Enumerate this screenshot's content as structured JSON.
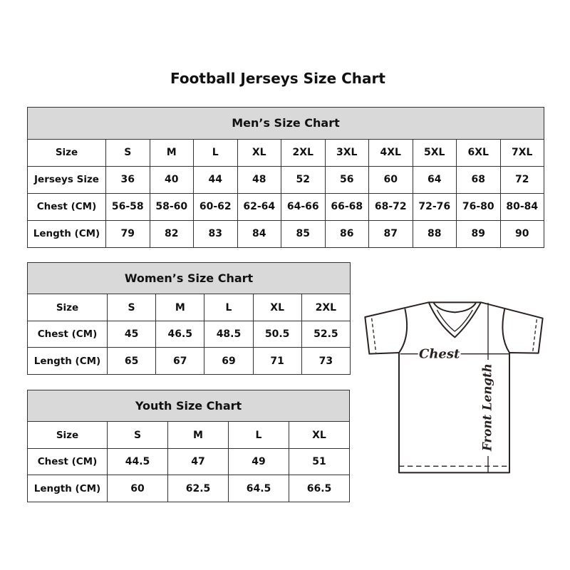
{
  "title": "Football Jerseys Size Chart",
  "men": {
    "heading": "Men’s Size Chart",
    "rows": [
      [
        "Size",
        "S",
        "M",
        "L",
        "XL",
        "2XL",
        "3XL",
        "4XL",
        "5XL",
        "6XL",
        "7XL"
      ],
      [
        "Jerseys Size",
        "36",
        "40",
        "44",
        "48",
        "52",
        "56",
        "60",
        "64",
        "68",
        "72"
      ],
      [
        "Chest (CM)",
        "56-58",
        "58-60",
        "60-62",
        "62-64",
        "64-66",
        "66-68",
        "68-72",
        "72-76",
        "76-80",
        "80-84"
      ],
      [
        "Length (CM)",
        "79",
        "82",
        "83",
        "84",
        "85",
        "86",
        "87",
        "88",
        "89",
        "90"
      ]
    ]
  },
  "women": {
    "heading": "Women’s Size Chart",
    "rows": [
      [
        "Size",
        "S",
        "M",
        "L",
        "XL",
        "2XL"
      ],
      [
        "Chest (CM)",
        "45",
        "46.5",
        "48.5",
        "50.5",
        "52.5"
      ],
      [
        "Length (CM)",
        "65",
        "67",
        "69",
        "71",
        "73"
      ]
    ]
  },
  "youth": {
    "heading": "Youth Size Chart",
    "rows": [
      [
        "Size",
        "S",
        "M",
        "L",
        "XL"
      ],
      [
        "Chest (CM)",
        "44.5",
        "47",
        "49",
        "51"
      ],
      [
        "Length (CM)",
        "60",
        "62.5",
        "64.5",
        "66.5"
      ]
    ]
  },
  "diagram": {
    "chest_label": "Chest",
    "length_label": "Front Length"
  },
  "colors": {
    "header_bg": "#d9d9d9",
    "border": "#333333"
  }
}
